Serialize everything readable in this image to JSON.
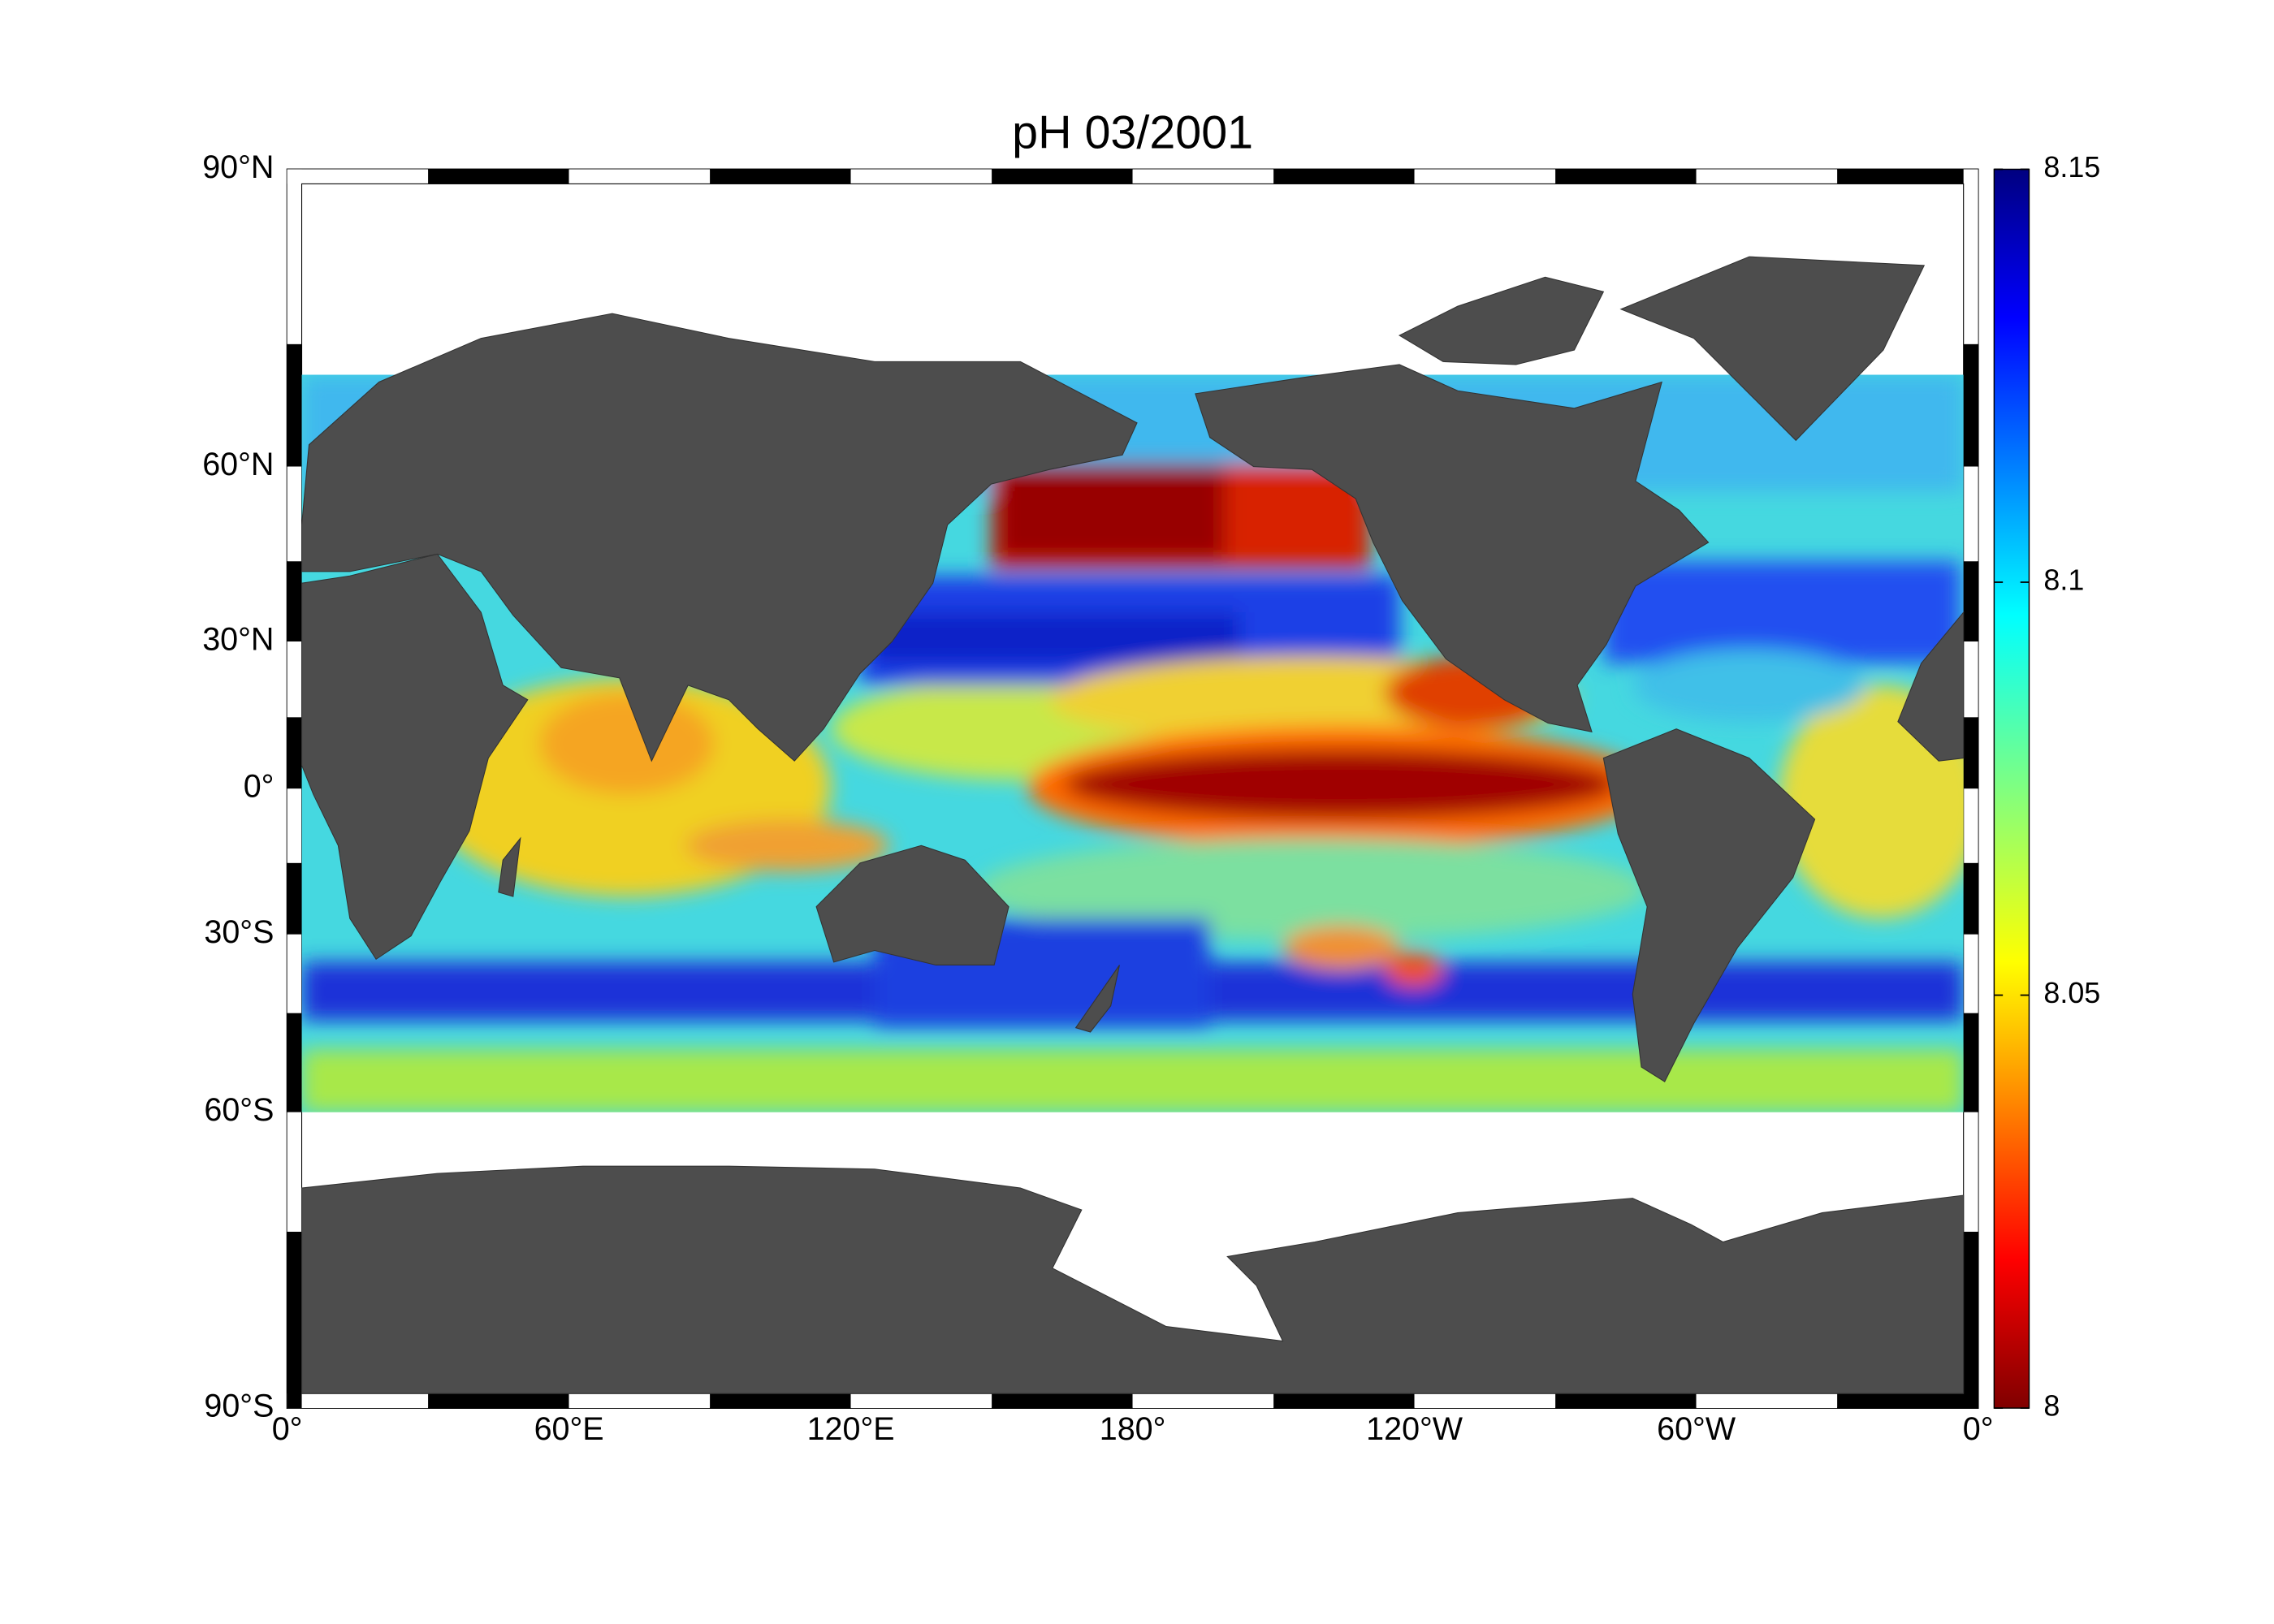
{
  "title": "pH  03/2001",
  "map": {
    "lat_labels": [
      "90°N",
      "60°N",
      "30°N",
      "0°",
      "30°S",
      "60°S",
      "90°S"
    ],
    "lon_labels": [
      "0°",
      "60°E",
      "120°E",
      "180°",
      "120°W",
      "60°W",
      "0°"
    ]
  },
  "colorbar": {
    "range": [
      8,
      8.15
    ],
    "ticks": [
      8,
      8.05,
      8.1,
      8.15
    ]
  }
}
